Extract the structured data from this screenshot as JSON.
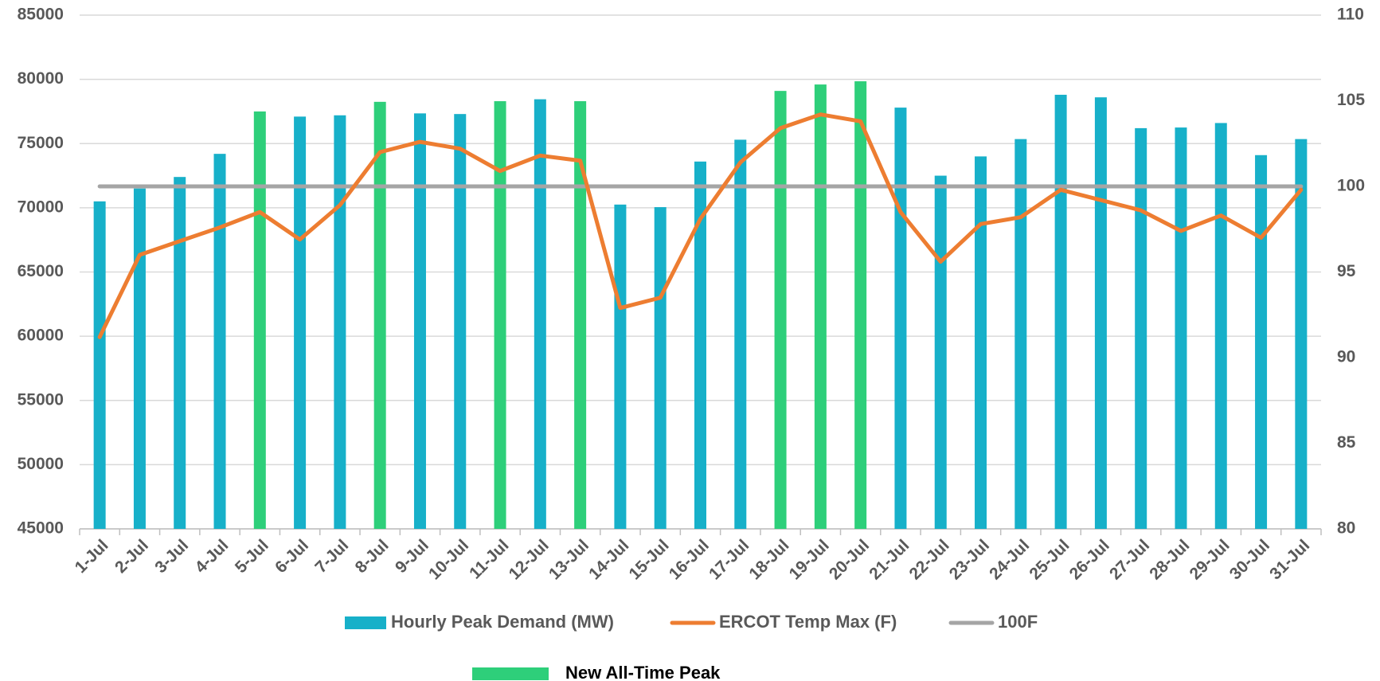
{
  "chart_data": {
    "type": "bar_line",
    "categories": [
      "1-Jul",
      "2-Jul",
      "3-Jul",
      "4-Jul",
      "5-Jul",
      "6-Jul",
      "7-Jul",
      "8-Jul",
      "9-Jul",
      "10-Jul",
      "11-Jul",
      "12-Jul",
      "13-Jul",
      "14-Jul",
      "15-Jul",
      "16-Jul",
      "17-Jul",
      "18-Jul",
      "19-Jul",
      "20-Jul",
      "21-Jul",
      "22-Jul",
      "23-Jul",
      "24-Jul",
      "25-Jul",
      "26-Jul",
      "27-Jul",
      "28-Jul",
      "29-Jul",
      "30-Jul",
      "31-Jul"
    ],
    "series": [
      {
        "name": "Hourly Peak Demand (MW)",
        "type": "bar",
        "color": "#17b0c9",
        "values": [
          70500,
          71500,
          72400,
          74200,
          null,
          77100,
          77200,
          null,
          77350,
          77300,
          null,
          78450,
          null,
          70250,
          70050,
          73600,
          75300,
          null,
          null,
          null,
          77800,
          72500,
          74000,
          75350,
          78800,
          78600,
          76200,
          76250,
          76600,
          74100,
          75350
        ]
      },
      {
        "name": "ERCOT Temp Max (F)",
        "type": "line",
        "axis": "y2",
        "color": "#ed7d31",
        "values": [
          91.2,
          96,
          96.8,
          97.6,
          98.5,
          96.9,
          98.9,
          102,
          102.6,
          102.2,
          100.9,
          101.8,
          101.5,
          92.9,
          93.5,
          98.1,
          101.4,
          103.4,
          104.2,
          103.8,
          98.5,
          95.6,
          97.8,
          98.2,
          99.8,
          99.2,
          98.6,
          97.4,
          98.3,
          97,
          99.8
        ]
      },
      {
        "name": "100F",
        "type": "line",
        "axis": "y2",
        "color": "#a5a5a5",
        "values": [
          100,
          100,
          100,
          100,
          100,
          100,
          100,
          100,
          100,
          100,
          100,
          100,
          100,
          100,
          100,
          100,
          100,
          100,
          100,
          100,
          100,
          100,
          100,
          100,
          100,
          100,
          100,
          100,
          100,
          100,
          100
        ]
      },
      {
        "name": "New All-Time Peak",
        "type": "bar",
        "color": "#2ecf7a",
        "values": [
          null,
          null,
          null,
          null,
          77500,
          null,
          null,
          78250,
          null,
          null,
          78300,
          null,
          78300,
          null,
          null,
          null,
          null,
          79100,
          79600,
          79850,
          null,
          null,
          null,
          null,
          null,
          null,
          null,
          null,
          null,
          null,
          null
        ]
      }
    ],
    "ylim": [
      45000,
      85000
    ],
    "yticks": [
      45000,
      50000,
      55000,
      60000,
      65000,
      70000,
      75000,
      80000,
      85000
    ],
    "y2lim": [
      80,
      110
    ],
    "y2ticks": [
      80,
      85,
      90,
      95,
      100,
      105,
      110
    ],
    "grid": true
  }
}
